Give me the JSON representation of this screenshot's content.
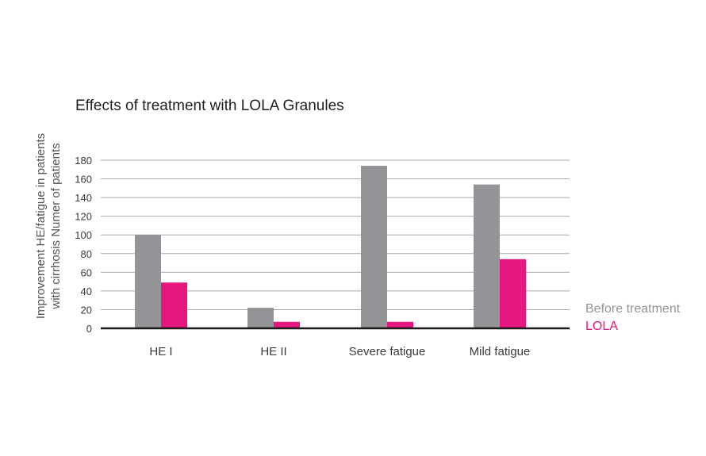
{
  "chart_data": {
    "type": "bar",
    "title": "Effects of treatment with LOLA Granules",
    "ylabel_lines": [
      "Improvement HE/fatigue in patients",
      "with cirrhosis Numer of patients"
    ],
    "xlabel": "",
    "categories": [
      "HE I",
      "HE II",
      "Severe fatigue",
      "Mild fatigue"
    ],
    "series": [
      {
        "name": "Before treatment",
        "color": "#929497",
        "values": [
          100,
          22,
          174,
          154
        ]
      },
      {
        "name": "LOLA",
        "color": "#e5177e",
        "values": [
          49,
          7,
          7,
          74
        ]
      }
    ],
    "ylim": [
      0,
      180
    ],
    "yticks": [
      0,
      20,
      40,
      60,
      80,
      100,
      120,
      140,
      160,
      180
    ],
    "grid": true,
    "legend_position": "right"
  }
}
